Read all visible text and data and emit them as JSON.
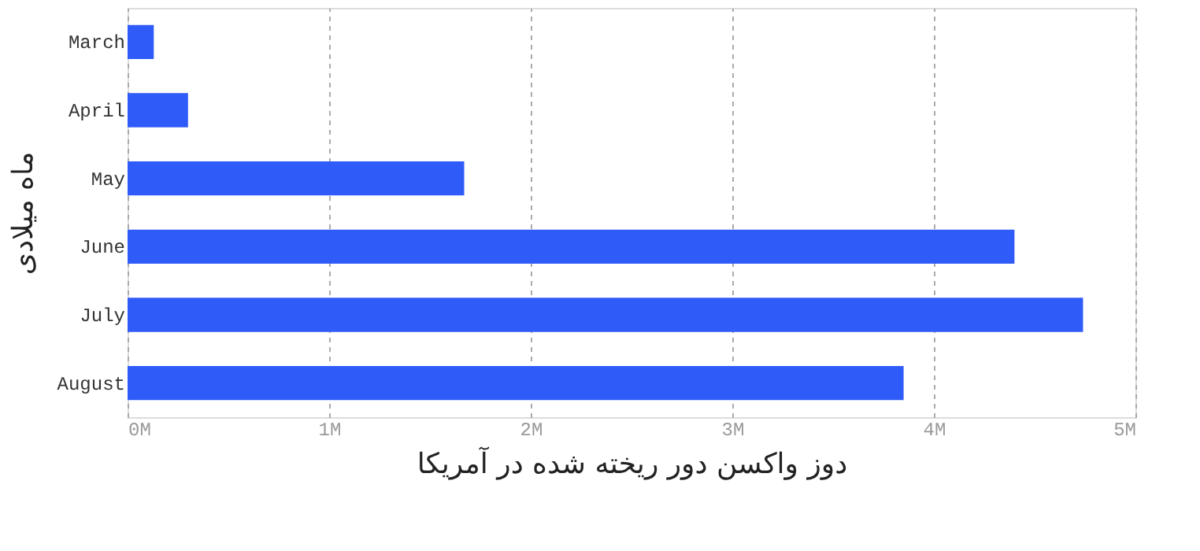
{
  "chart_data": {
    "type": "bar",
    "orientation": "horizontal",
    "xlabel": "دوز واکسن دور ریخته شده در آمریکا",
    "ylabel": "ماه میلادی",
    "categories": [
      "March",
      "April",
      "May",
      "June",
      "July",
      "August"
    ],
    "values": [
      0.13,
      0.3,
      1.67,
      4.4,
      4.74,
      3.85
    ],
    "color": "#2f5bf8",
    "xlim": [
      0,
      5
    ],
    "xticks": [
      {
        "value": 0,
        "label": "0M"
      },
      {
        "value": 1,
        "label": "1M"
      },
      {
        "value": 2,
        "label": "2M"
      },
      {
        "value": 3,
        "label": "3M"
      },
      {
        "value": 4,
        "label": "4M"
      },
      {
        "value": 5,
        "label": "5M"
      }
    ],
    "grid": "x"
  }
}
